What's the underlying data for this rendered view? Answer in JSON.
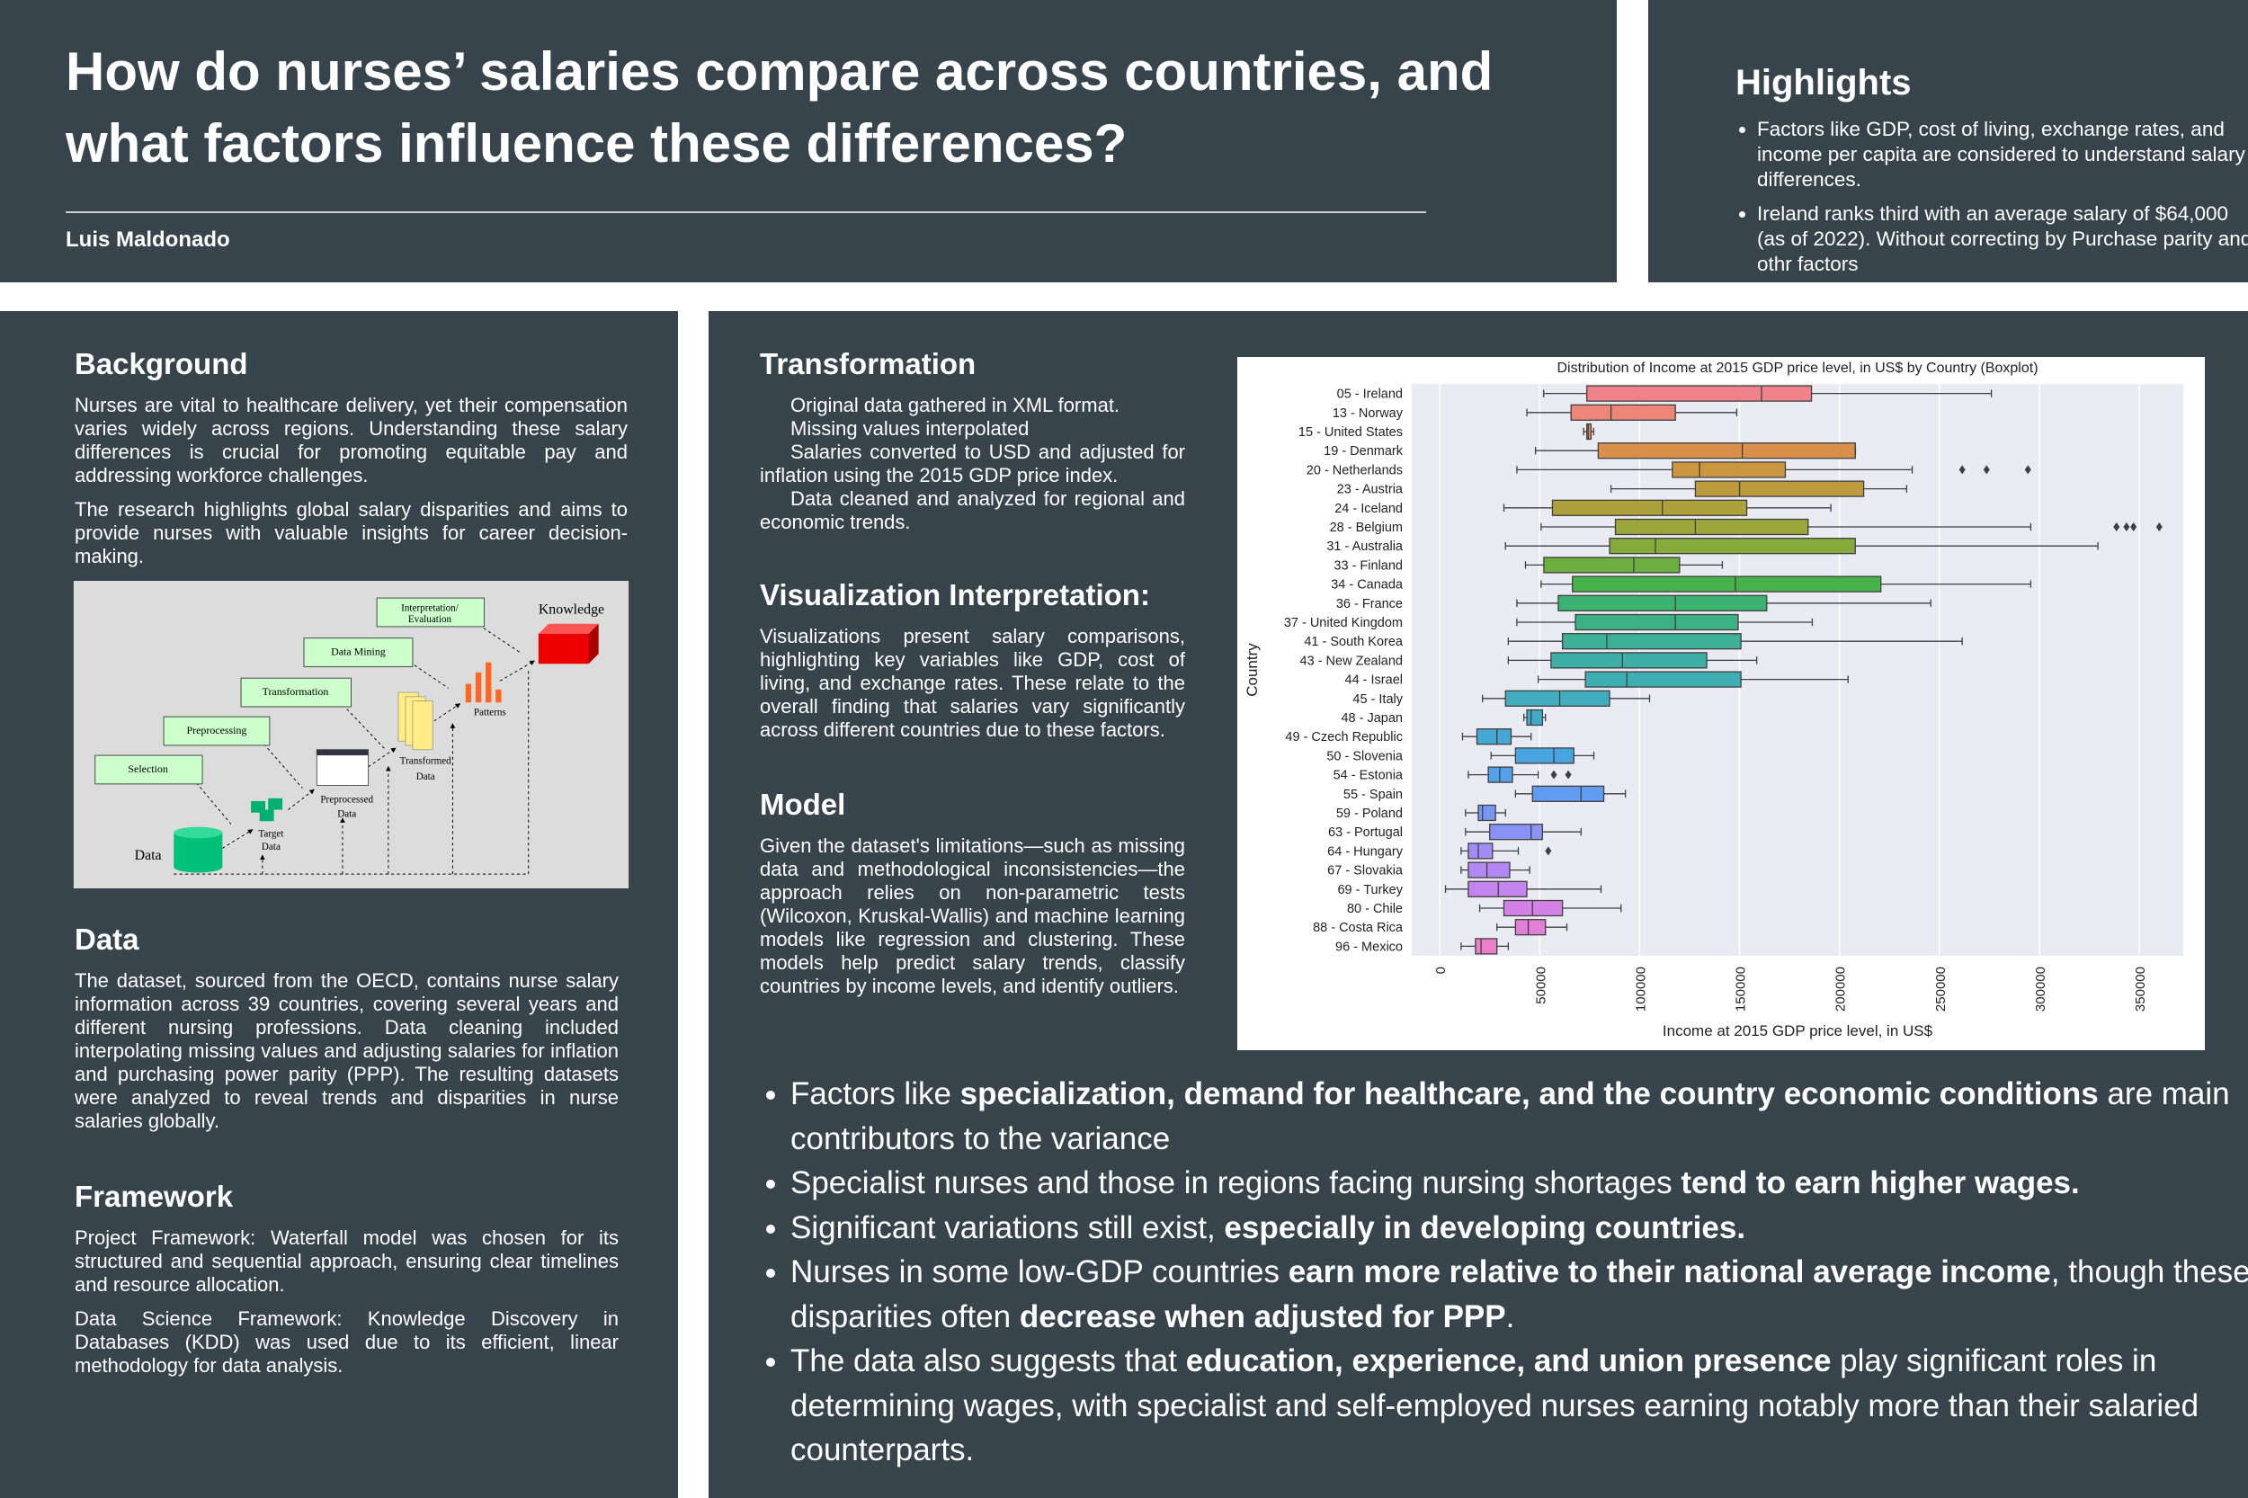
{
  "header": {
    "title": "How do nurses’ salaries compare across countries, and what factors influence these differences?",
    "author": "Luis Maldonado"
  },
  "highlights": {
    "title": "Highlights",
    "items": [
      "Factors like GDP, cost of living, exchange rates, and income per capita are considered to understand salary differences.",
      "Ireland ranks third with an average salary of $64,000 (as of 2022). Without correcting by Purchase parity and othr factors"
    ]
  },
  "background": {
    "title": "Background",
    "paragraphs": [
      "Nurses are vital to healthcare delivery, yet their compensation varies widely across regions. Understanding these salary differences is crucial for promoting equitable pay and addressing workforce challenges.",
      "The research highlights global salary disparities and aims to provide nurses with valuable insights for career decision-making."
    ],
    "diagram": {
      "selection": "Selection",
      "preprocessing": "Preprocessing",
      "transformation": "Transformation",
      "data_mining": "Data Mining",
      "interpretation": [
        "Interpretation/",
        "Evaluation"
      ],
      "knowledge": "Knowledge",
      "data": "Data",
      "target_data": [
        "Target",
        "Data"
      ],
      "preprocessed_data": [
        "Preprocessed",
        "Data"
      ],
      "transformed_data": [
        "Transformed",
        "Data"
      ],
      "patterns": "Patterns"
    }
  },
  "data": {
    "title": "Data",
    "paragraphs": [
      "The dataset, sourced from the OECD, contains nurse salary information across 39 countries, covering several years and different nursing professions. Data cleaning included interpolating missing values and adjusting salaries for inflation and purchasing power parity (PPP). The resulting datasets were analyzed to reveal trends and disparities in nurse salaries globally."
    ]
  },
  "framework": {
    "title": "Framework",
    "paragraphs": [
      "Project Framework: Waterfall model was chosen for its structured and sequential approach, ensuring clear timelines and resource allocation.",
      "Data Science Framework: Knowledge Discovery in Databases (KDD) was used due to its efficient, linear methodology for data analysis."
    ]
  },
  "transformation": {
    "title": "Transformation",
    "paragraphs": [
      "Original data gathered in XML format.",
      "Missing values interpolated",
      "Salaries converted to USD and adjusted for inflation using the 2015 GDP price index.",
      "Data cleaned and analyzed for regional and economic trends."
    ]
  },
  "visualization": {
    "title": "Visualization Interpretation:",
    "paragraphs": [
      "Visualizations present salary comparisons, highlighting key variables like GDP, cost of living, and exchange rates. These relate to the overall finding that salaries vary significantly across different countries due to these factors."
    ]
  },
  "model": {
    "title": "Model",
    "paragraphs": [
      "Given the dataset's limitations—such as missing data and methodological inconsistencies—the approach relies on non-parametric tests (Wilcoxon, Kruskal-Wallis) and machine learning models like regression and clustering. These models help predict salary trends, classify countries by income levels, and identify outliers."
    ]
  },
  "findings": [
    {
      "segments": [
        {
          "text": "Factors like ",
          "bold": false
        },
        {
          "text": "specialization, demand for healthcare, and the country economic conditions",
          "bold": true
        },
        {
          "text": " are main contributors to the variance",
          "bold": false
        }
      ]
    },
    {
      "segments": [
        {
          "text": "Specialist nurses and those in regions facing nursing shortages ",
          "bold": false
        },
        {
          "text": "tend to earn higher wages.",
          "bold": true
        }
      ]
    },
    {
      "segments": [
        {
          "text": "Significant variations still exist, ",
          "bold": false
        },
        {
          "text": "especially in developing countries.",
          "bold": true
        }
      ]
    },
    {
      "segments": [
        {
          "text": "Nurses in some low-GDP countries ",
          "bold": false
        },
        {
          "text": "earn more relative to their national average income",
          "bold": true
        },
        {
          "text": ", though these disparities often ",
          "bold": false
        },
        {
          "text": "decrease when adjusted for PPP",
          "bold": true
        },
        {
          "text": ".",
          "bold": false
        }
      ]
    },
    {
      "segments": [
        {
          "text": "The data also suggests that ",
          "bold": false
        },
        {
          "text": "education, experience, and union presence",
          "bold": true
        },
        {
          "text": " play significant roles in determining wages, with specialist and self-employed nurses earning notably more than their salaried counterparts.",
          "bold": false
        }
      ]
    }
  ],
  "chart_data": {
    "type": "boxplot",
    "title": "Distribution of Income at 2015 GDP price level, in US$ by Country (Boxplot)",
    "xlabel": "Income at 2015 GDP price level, in US$",
    "ylabel": "Country",
    "grid": true,
    "xlim": [
      -14000,
      372000
    ],
    "xticks": [
      0,
      50000,
      100000,
      150000,
      200000,
      250000,
      300000,
      350000
    ],
    "categories": [
      "05 - Ireland",
      "13 - Norway",
      "15 - United States",
      "19 - Denmark",
      "20 - Netherlands",
      "23 - Austria",
      "24 - Iceland",
      "28 - Belgium",
      "31 - Australia",
      "33 - Finland",
      "34 - Canada",
      "36 - France",
      "37 - United Kingdom",
      "41 - South Korea",
      "43 - New Zealand",
      "44 - Israel",
      "45 - Italy",
      "48 - Japan",
      "49 - Czech Republic",
      "50 - Slovenia",
      "54 - Estonia",
      "55 - Spain",
      "59 - Poland",
      "63 - Portugal",
      "64 - Hungary",
      "67 - Slovakia",
      "69 - Turkey",
      "80 - Chile",
      "88 - Costa Rica",
      "96 - Mexico"
    ],
    "colors": [
      "#f0828c",
      "#eb8678",
      "#e48a5f",
      "#d9904a",
      "#cc963f",
      "#bd9b3c",
      "#aca13b",
      "#9ba63b",
      "#87aa3c",
      "#6cae3f",
      "#47b249",
      "#3cb270",
      "#3cb187",
      "#3db098",
      "#3eafa6",
      "#3faeb2",
      "#40acbd",
      "#42aac9",
      "#45a8d4",
      "#49a5df",
      "#52a1ea",
      "#609cf1",
      "#7697f4",
      "#8b92f5",
      "#a08df4",
      "#b388f2",
      "#c484ee",
      "#d481e6",
      "#e17fd9",
      "#ea80c9"
    ],
    "boxes": [
      {
        "min": 52000,
        "q1": 73600,
        "median": 161000,
        "q3": 186000,
        "max": 276000,
        "outliers": []
      },
      {
        "min": 43600,
        "q1": 65700,
        "median": 85700,
        "q3": 117900,
        "max": 148600,
        "outliers": []
      },
      {
        "min": 72000,
        "q1": 73600,
        "median": 74300,
        "q3": 75700,
        "max": 77000,
        "outliers": []
      },
      {
        "min": 47900,
        "q1": 79300,
        "median": 151400,
        "q3": 207900,
        "max": 208000,
        "outliers": []
      },
      {
        "min": 38600,
        "q1": 116400,
        "median": 130000,
        "q3": 172900,
        "max": 236400,
        "outliers": [
          261400,
          273600,
          294300
        ]
      },
      {
        "min": 85700,
        "q1": 127900,
        "median": 150000,
        "q3": 212100,
        "max": 233600,
        "outliers": []
      },
      {
        "min": 32100,
        "q1": 56400,
        "median": 111400,
        "q3": 153600,
        "max": 195700,
        "outliers": []
      },
      {
        "min": 50700,
        "q1": 87900,
        "median": 127900,
        "q3": 184300,
        "max": 295700,
        "outliers": [
          338600,
          343600,
          347100,
          360000
        ]
      },
      {
        "min": 32900,
        "q1": 85000,
        "median": 107900,
        "q3": 207900,
        "max": 329300,
        "outliers": []
      },
      {
        "min": 42900,
        "q1": 52100,
        "median": 97100,
        "q3": 120000,
        "max": 141400,
        "outliers": []
      },
      {
        "min": 50700,
        "q1": 66400,
        "median": 147900,
        "q3": 220700,
        "max": 295700,
        "outliers": []
      },
      {
        "min": 38600,
        "q1": 59300,
        "median": 117900,
        "q3": 163600,
        "max": 245700,
        "outliers": []
      },
      {
        "min": 38600,
        "q1": 67900,
        "median": 117900,
        "q3": 149300,
        "max": 186400,
        "outliers": []
      },
      {
        "min": 34300,
        "q1": 61400,
        "median": 83600,
        "q3": 150700,
        "max": 261400,
        "outliers": []
      },
      {
        "min": 34300,
        "q1": 55700,
        "median": 91400,
        "q3": 133600,
        "max": 158600,
        "outliers": []
      },
      {
        "min": 49300,
        "q1": 72900,
        "median": 93600,
        "q3": 150700,
        "max": 204300,
        "outliers": []
      },
      {
        "min": 21400,
        "q1": 32900,
        "median": 60000,
        "q3": 85000,
        "max": 105000,
        "outliers": []
      },
      {
        "min": 42100,
        "q1": 43600,
        "median": 45700,
        "q3": 51400,
        "max": 52900,
        "outliers": []
      },
      {
        "min": 11400,
        "q1": 18600,
        "median": 28600,
        "q3": 35700,
        "max": 45700,
        "outliers": []
      },
      {
        "min": 25700,
        "q1": 37900,
        "median": 57100,
        "q3": 67100,
        "max": 77100,
        "outliers": []
      },
      {
        "min": 14300,
        "q1": 24300,
        "median": 30000,
        "q3": 36400,
        "max": 49300,
        "outliers": [
          57100,
          64300
        ]
      },
      {
        "min": 37900,
        "q1": 46400,
        "median": 70700,
        "q3": 82100,
        "max": 92900,
        "outliers": []
      },
      {
        "min": 12900,
        "q1": 19300,
        "median": 21400,
        "q3": 27900,
        "max": 32900,
        "outliers": []
      },
      {
        "min": 12900,
        "q1": 25000,
        "median": 45700,
        "q3": 51400,
        "max": 70700,
        "outliers": []
      },
      {
        "min": 10700,
        "q1": 14300,
        "median": 19300,
        "q3": 26400,
        "max": 39300,
        "outliers": [
          54300
        ]
      },
      {
        "min": 10700,
        "q1": 14300,
        "median": 23600,
        "q3": 35000,
        "max": 45000,
        "outliers": []
      },
      {
        "min": 2900,
        "q1": 14300,
        "median": 29300,
        "q3": 43600,
        "max": 80700,
        "outliers": []
      },
      {
        "min": 20000,
        "q1": 32100,
        "median": 46400,
        "q3": 61400,
        "max": 90700,
        "outliers": []
      },
      {
        "min": 28600,
        "q1": 37900,
        "median": 44300,
        "q3": 52900,
        "max": 63600,
        "outliers": []
      },
      {
        "min": 10700,
        "q1": 17900,
        "median": 20700,
        "q3": 28600,
        "max": 34300,
        "outliers": []
      }
    ]
  }
}
